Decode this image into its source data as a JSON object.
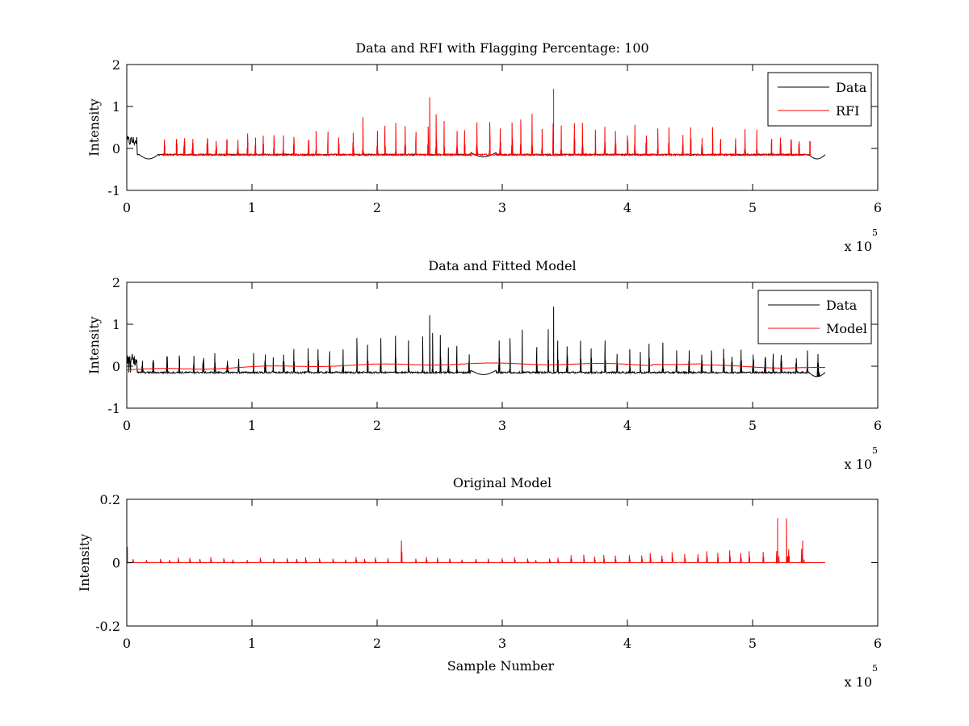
{
  "chart_data": [
    {
      "type": "line",
      "title": "Data and RFI with Flagging Percentage: 100",
      "xlabel": "",
      "ylabel": "Intensity",
      "xlim": [
        0,
        6
      ],
      "ylim": [
        -1,
        2
      ],
      "xticks": [
        "0",
        "1",
        "2",
        "3",
        "4",
        "5",
        "6"
      ],
      "yticks": [
        "-1",
        "0",
        "1",
        "2"
      ],
      "x_multiplier": {
        "base": "x 10",
        "exponent": "5"
      },
      "legend": {
        "placement": "top-right",
        "entries": [
          "Data",
          "RFI"
        ]
      },
      "series": [
        {
          "name": "Data",
          "color": "#000000",
          "x_range": [
            0,
            5.58
          ],
          "baseline": -0.15,
          "style": "noise"
        },
        {
          "name": "RFI",
          "color": "#ff0000",
          "x_range": [
            0.28,
            5.46
          ],
          "baseline": -0.15,
          "style": "spikes",
          "peak_max": 1.42
        }
      ]
    },
    {
      "type": "line",
      "title": "Data and Fitted Model",
      "xlabel": "",
      "ylabel": "Intensity",
      "xlim": [
        0,
        6
      ],
      "ylim": [
        -1,
        2
      ],
      "xticks": [
        "0",
        "1",
        "2",
        "3",
        "4",
        "5",
        "6"
      ],
      "yticks": [
        "-1",
        "0",
        "1",
        "2"
      ],
      "x_multiplier": {
        "base": "x 10",
        "exponent": "5"
      },
      "legend": {
        "placement": "top-right",
        "entries": [
          "Data",
          "Model"
        ]
      },
      "series": [
        {
          "name": "Data",
          "color": "#000000",
          "x_range": [
            0,
            5.58
          ],
          "baseline": -0.15,
          "style": "spikes",
          "peak_max": 1.42
        },
        {
          "name": "Model",
          "color": "#ff0000",
          "x_range": [
            0,
            5.58
          ],
          "baseline": -0.05,
          "style": "smooth",
          "peak_max": 0.12
        }
      ]
    },
    {
      "type": "line",
      "title": "Original Model",
      "xlabel": "Sample Number",
      "ylabel": "Intensity",
      "xlim": [
        0,
        6
      ],
      "ylim": [
        -0.2,
        0.2
      ],
      "xticks": [
        "0",
        "1",
        "2",
        "3",
        "4",
        "5",
        "6"
      ],
      "yticks": [
        "-0.2",
        "0",
        "0.2"
      ],
      "x_multiplier": {
        "base": "x 10",
        "exponent": "5"
      },
      "series": [
        {
          "name": "Original Model",
          "color": "#ff0000",
          "x_range": [
            0,
            5.58
          ],
          "baseline": 0,
          "style": "small-spikes",
          "peak_max": 0.14
        }
      ]
    }
  ]
}
